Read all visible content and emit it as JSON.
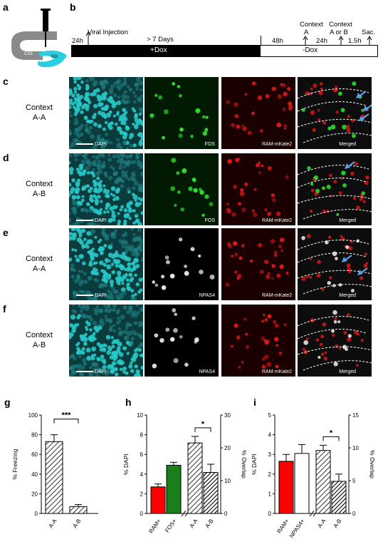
{
  "panel_letters": {
    "a": "a",
    "b": "b",
    "c": "c",
    "d": "d",
    "e": "e",
    "f": "f",
    "g": "g",
    "h": "h",
    "i": "i"
  },
  "schematic_a": {
    "ca1": "CA1",
    "ca3": "CA3",
    "dg": "DG"
  },
  "timeline": {
    "t24h": "24h",
    "viral": "Viral Injection",
    "days": "> 7 Days",
    "dox": "+Dox",
    "t48h": "48h",
    "nodox": "-Dox",
    "contextA": "Context",
    "contextA2": "A",
    "t24h_b": "24h",
    "contextAB": "Context",
    "contextAB2": "A or B",
    "t15h": "1.5h",
    "sac": "Sac."
  },
  "rows": [
    {
      "letter": "c",
      "label1": "Context",
      "label2": "A-A",
      "marker": "FOS"
    },
    {
      "letter": "d",
      "label1": "Context",
      "label2": "A-B",
      "marker": "FOS"
    },
    {
      "letter": "e",
      "label1": "Context",
      "label2": "A-A",
      "marker": "NPAS4"
    },
    {
      "letter": "f",
      "label1": "Context",
      "label2": "A-B",
      "marker": "NPAS4"
    }
  ],
  "tile_labels": {
    "dapi": "DAPI",
    "ram": "RAM-mKate2",
    "merged": "Merged"
  },
  "colors": {
    "dapi": "#27c8c8",
    "fos": "#2ee62e",
    "ram": "#e01818",
    "arrow": "#5aa0e6",
    "bar_red": "#ff0000",
    "bar_green": "#1a7f1a"
  },
  "chart_data": [
    {
      "type": "bar",
      "panel": "g",
      "categories": [
        "A-A",
        "A-B"
      ],
      "values": [
        73,
        7
      ],
      "errors": [
        7,
        2
      ],
      "ylabel": "% Freezing",
      "ylim": [
        0,
        100
      ],
      "yticks": [
        "0",
        "20",
        "40",
        "60",
        "80",
        "100"
      ],
      "significance": "***"
    },
    {
      "type": "bar",
      "panel": "h",
      "left": {
        "categories": [
          "RAM+",
          "FOS+"
        ],
        "values": [
          2.7,
          4.9
        ],
        "errors": [
          0.3,
          0.3
        ],
        "ylabel": "% DAPI",
        "ylim": [
          0,
          10
        ],
        "yticks": [
          "0",
          "2",
          "4",
          "6",
          "8",
          "10"
        ]
      },
      "right": {
        "categories": [
          "A-A",
          "A-B"
        ],
        "values": [
          21.5,
          12.5
        ],
        "errors": [
          2,
          2.5
        ],
        "ylabel": "% Overlap",
        "ylim": [
          0,
          30
        ],
        "yticks": [
          "0",
          "10",
          "20",
          "30"
        ],
        "significance": "*"
      }
    },
    {
      "type": "bar",
      "panel": "i",
      "left": {
        "categories": [
          "RAM+",
          "NPAS4+"
        ],
        "values": [
          2.65,
          3.05
        ],
        "errors": [
          0.35,
          0.45
        ],
        "ylabel": "% DAPI",
        "ylim": [
          0,
          5
        ],
        "yticks": [
          "0",
          "1",
          "2",
          "3",
          "4",
          "5"
        ]
      },
      "right": {
        "categories": [
          "A-A",
          "A-B"
        ],
        "values": [
          9.6,
          4.9
        ],
        "errors": [
          0.8,
          1.1
        ],
        "ylabel": "% Overlap",
        "ylim": [
          0,
          15
        ],
        "yticks": [
          "0",
          "5",
          "10",
          "15"
        ],
        "significance": "*"
      }
    }
  ]
}
